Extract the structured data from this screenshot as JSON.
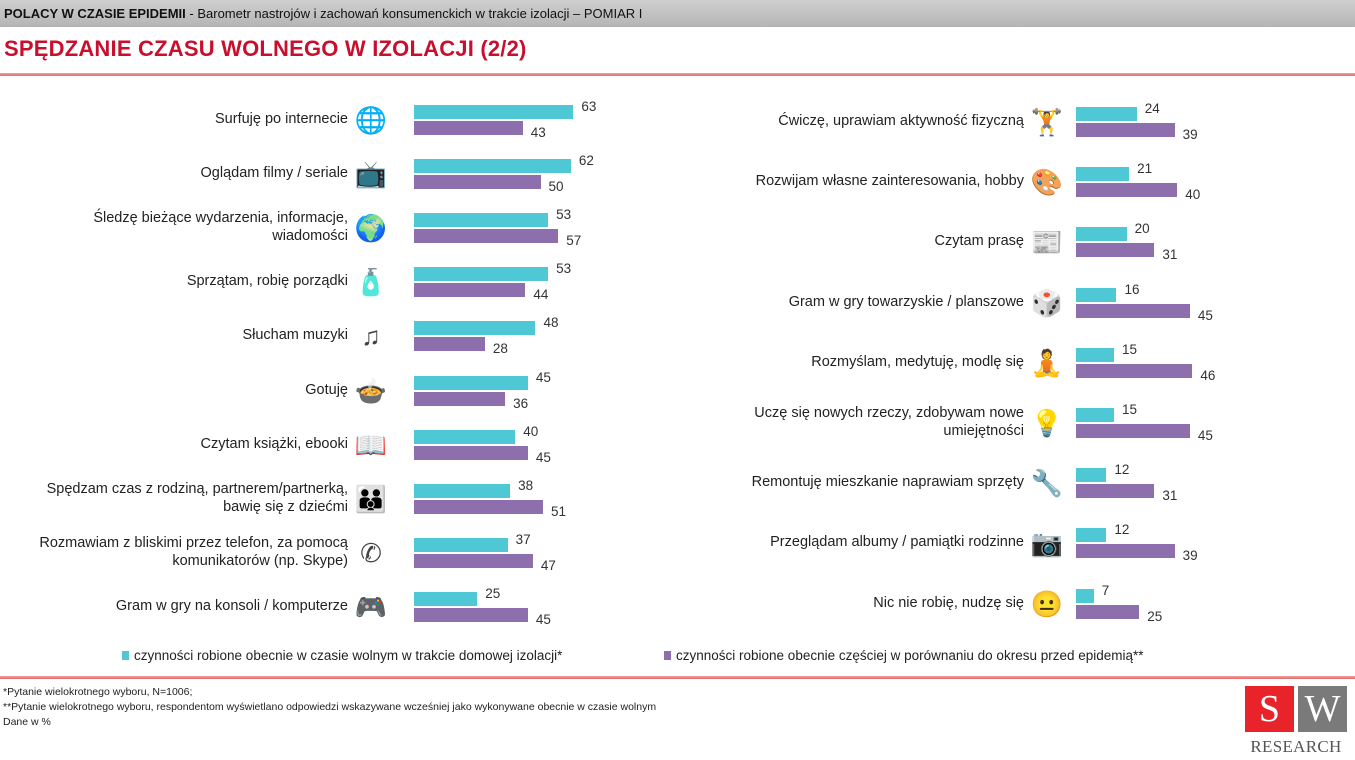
{
  "header": {
    "bold": "POLACY W CZASIE EPIDEMII",
    "rest": " - Barometr nastrojów i zachowań konsumenckich w trakcie izolacji – POMIAR I"
  },
  "title": "SPĘDZANIE CZASU WOLNEGO W IZOLACJI (2/2)",
  "colors": {
    "series1": "#4ec8d4",
    "series2": "#8e6fae",
    "accent": "#c8102e"
  },
  "chart_data": [
    {
      "type": "bar",
      "orientation": "horizontal",
      "unit": "%",
      "series": [
        {
          "name": "czynności robione obecnie w czasie wolnym w trakcie domowej izolacji*"
        },
        {
          "name": "czynności robione obecnie częściej w porównaniu do okresu przed epidemią**"
        }
      ],
      "categories": [
        {
          "label": [
            "Surfuję po internecie"
          ],
          "icon": "globe-internet-icon",
          "values": [
            63,
            43
          ]
        },
        {
          "label": [
            "Oglądam filmy / seriale"
          ],
          "icon": "tv-icon",
          "values": [
            62,
            50
          ]
        },
        {
          "label": [
            "Śledzę bieżące wydarzenia, informacje,",
            "wiadomości"
          ],
          "icon": "live-news-globe-icon",
          "values": [
            53,
            57
          ]
        },
        {
          "label": [
            "Sprzątam, robię porządki"
          ],
          "icon": "spray-bottle-icon",
          "values": [
            53,
            44
          ]
        },
        {
          "label": [
            "Słucham muzyki"
          ],
          "icon": "music-notes-icon",
          "values": [
            48,
            28
          ]
        },
        {
          "label": [
            "Gotuję"
          ],
          "icon": "cooking-pot-icon",
          "values": [
            45,
            36
          ]
        },
        {
          "label": [
            "Czytam książki, ebooki"
          ],
          "icon": "book-icon",
          "values": [
            40,
            45
          ]
        },
        {
          "label": [
            "Spędzam czas z rodziną, partnerem/partnerką,",
            "bawię się z  dziećmi"
          ],
          "icon": "family-icon",
          "values": [
            38,
            51
          ]
        },
        {
          "label": [
            "Rozmawiam z bliskimi przez telefon, za pomocą",
            "komunikatorów (np. Skype)"
          ],
          "icon": "phone-icon",
          "values": [
            37,
            47
          ]
        },
        {
          "label": [
            "Gram w gry na konsoli / komputerze"
          ],
          "icon": "gamepad-icon",
          "values": [
            25,
            45
          ]
        }
      ]
    },
    {
      "type": "bar",
      "orientation": "horizontal",
      "unit": "%",
      "categories": [
        {
          "label": [
            "Ćwiczę, uprawiam aktywność fizyczną"
          ],
          "icon": "exercise-icon",
          "values": [
            24,
            39
          ]
        },
        {
          "label": [
            "Rozwijam własne zainteresowania, hobby"
          ],
          "icon": "easel-icon",
          "values": [
            21,
            40
          ]
        },
        {
          "label": [
            "Czytam prasę"
          ],
          "icon": "newspaper-icon",
          "values": [
            20,
            31
          ]
        },
        {
          "label": [
            "Gram w gry towarzyskie / planszowe"
          ],
          "icon": "board-game-icon",
          "values": [
            16,
            45
          ]
        },
        {
          "label": [
            "Rozmyślam, medytuję, modlę się"
          ],
          "icon": "meditation-icon",
          "values": [
            15,
            46
          ]
        },
        {
          "label": [
            "Uczę się nowych rzeczy, zdobywam nowe",
            "umiejętności"
          ],
          "icon": "lightbulb-icon",
          "values": [
            15,
            45
          ]
        },
        {
          "label": [
            "Remontuję mieszkanie naprawiam  sprzęty"
          ],
          "icon": "repair-tools-icon",
          "values": [
            12,
            31
          ]
        },
        {
          "label": [
            "Przeglądam albumy / pamiątki rodzinne"
          ],
          "icon": "photo-album-icon",
          "values": [
            12,
            39
          ]
        },
        {
          "label": [
            "Nic nie robię, nudzę się"
          ],
          "icon": "bored-person-icon",
          "values": [
            7,
            25
          ]
        }
      ]
    }
  ],
  "legend": [
    "czynności robione obecnie w czasie wolnym w trakcie domowej izolacji*",
    "czynności robione obecnie częściej w porównaniu do okresu przed epidemią**"
  ],
  "footnotes": [
    "*Pytanie wielokrotnego wyboru, N=1006;",
    "**Pytanie wielokrotnego wyboru, respondentom wyświetlano odpowiedzi wskazywane wcześniej jako wykonywane obecnie w czasie wolnym",
    "Dane w %"
  ],
  "logo": {
    "s": "S",
    "w": "W",
    "text": "RESEARCH"
  }
}
